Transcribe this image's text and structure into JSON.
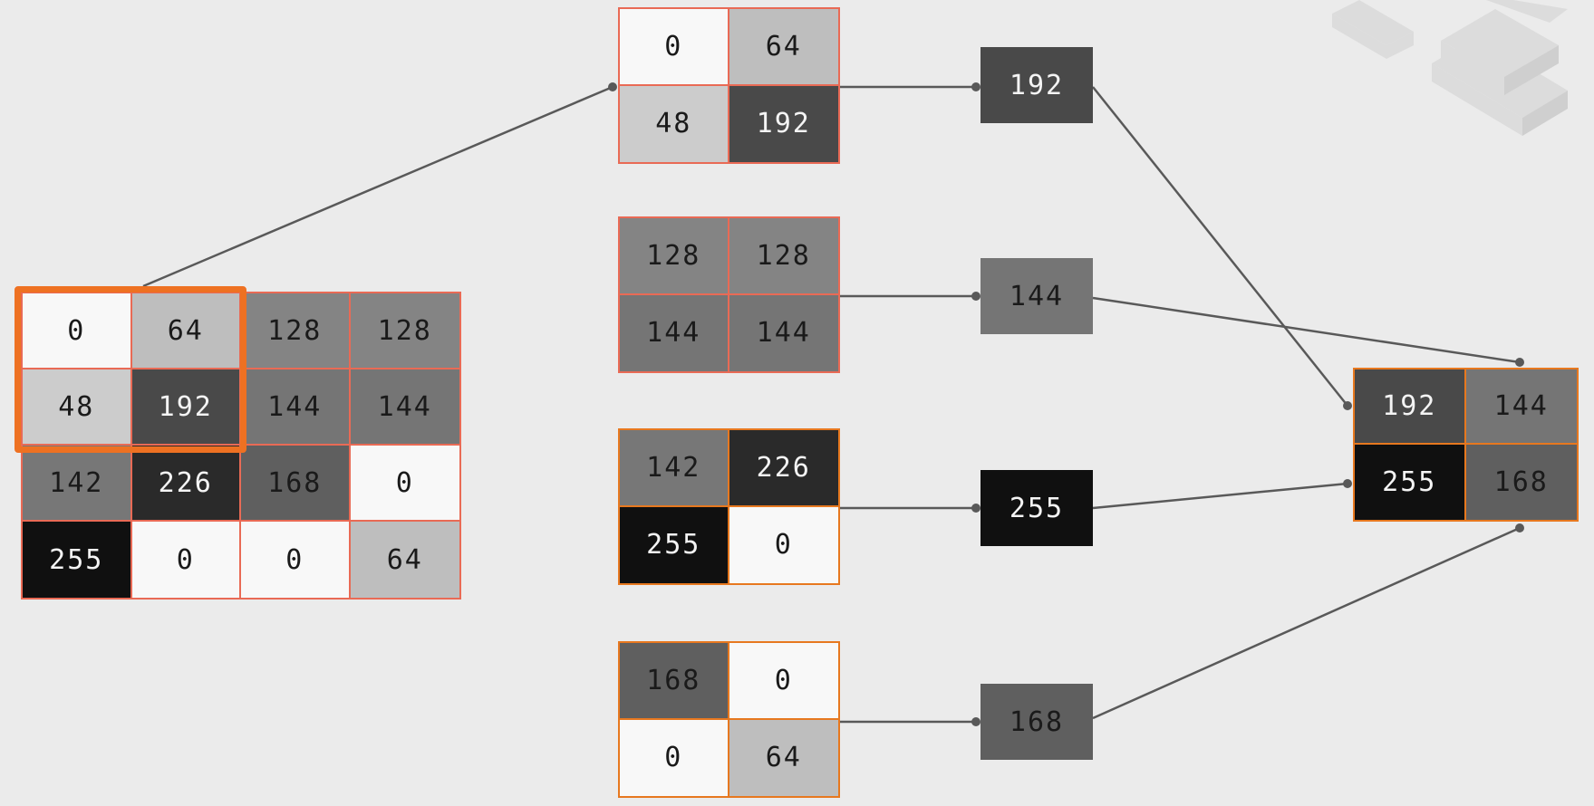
{
  "input_grid": {
    "cells": [
      [
        "0",
        "64",
        "128",
        "128"
      ],
      [
        "48",
        "192",
        "144",
        "144"
      ],
      [
        "142",
        "226",
        "168",
        "0"
      ],
      [
        "255",
        "0",
        "0",
        "64"
      ]
    ],
    "values": [
      [
        0,
        64,
        128,
        128
      ],
      [
        48,
        192,
        144,
        144
      ],
      [
        142,
        226,
        168,
        0
      ],
      [
        255,
        0,
        0,
        64
      ]
    ]
  },
  "patches": [
    {
      "cells": [
        [
          "0",
          "64"
        ],
        [
          "48",
          "192"
        ]
      ],
      "values": [
        [
          0,
          64
        ],
        [
          48,
          192
        ]
      ],
      "max_label": "192",
      "max": 192
    },
    {
      "cells": [
        [
          "128",
          "128"
        ],
        [
          "144",
          "144"
        ]
      ],
      "values": [
        [
          128,
          128
        ],
        [
          144,
          144
        ]
      ],
      "max_label": "144",
      "max": 144
    },
    {
      "cells": [
        [
          "142",
          "226"
        ],
        [
          "255",
          "0"
        ]
      ],
      "values": [
        [
          142,
          226
        ],
        [
          255,
          0
        ]
      ],
      "max_label": "255",
      "max": 255
    },
    {
      "cells": [
        [
          "168",
          "0"
        ],
        [
          "0",
          "64"
        ]
      ],
      "values": [
        [
          168,
          0
        ],
        [
          0,
          64
        ]
      ],
      "max_label": "168",
      "max": 168
    }
  ],
  "output_grid": {
    "cells": [
      [
        "192",
        "144"
      ],
      [
        "255",
        "168"
      ]
    ],
    "values": [
      [
        192,
        144
      ],
      [
        255,
        168
      ]
    ]
  },
  "colors": {
    "background": "#ebebeb",
    "grid_border_red": "#e96a55",
    "grid_border_orange": "#e7781f",
    "selection": "#ee7122",
    "connector": "#595959"
  }
}
